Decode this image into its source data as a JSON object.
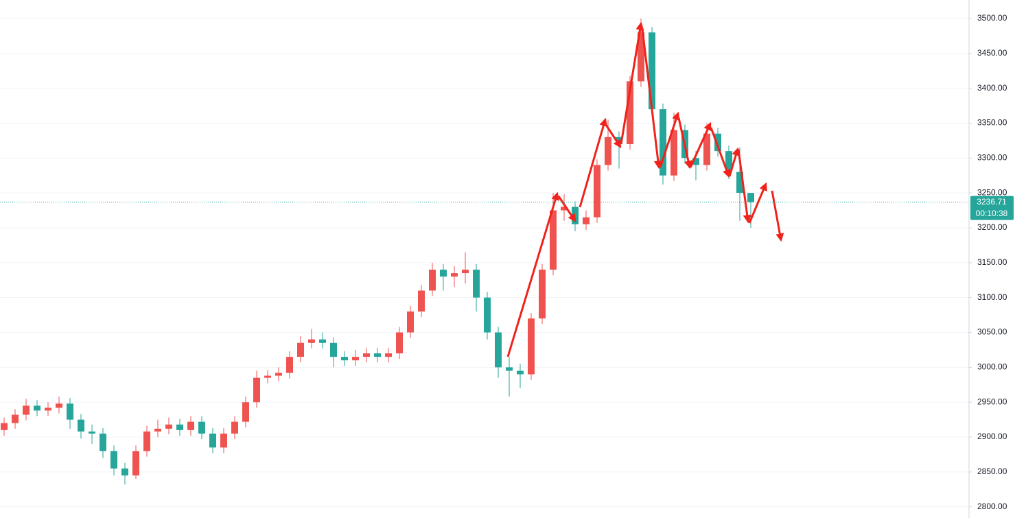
{
  "chart_data": {
    "type": "candlestick",
    "open": [
      2910,
      2920,
      2932,
      2945,
      2938,
      2942,
      2948,
      2925,
      2908,
      2905,
      2880,
      2855,
      2845,
      2880,
      2908,
      2912,
      2918,
      2910,
      2922,
      2905,
      2885,
      2905,
      2922,
      2950,
      2985,
      2988,
      2992,
      3015,
      3035,
      3040,
      3035,
      3015,
      3010,
      3015,
      3020,
      3015,
      3020,
      3050,
      3080,
      3110,
      3140,
      3130,
      3135,
      3140,
      3100,
      3050,
      3000,
      2995,
      2990,
      3070,
      3140,
      3225,
      3230,
      3205,
      3215,
      3290,
      3330,
      3320,
      3410,
      3480,
      3370,
      3275,
      3340,
      3300,
      3290,
      3335,
      3310,
      3280,
      3250
    ],
    "high": [
      2928,
      2940,
      2955,
      2953,
      2950,
      2958,
      2956,
      2933,
      2918,
      2913,
      2888,
      2863,
      2888,
      2916,
      2925,
      2928,
      2926,
      2930,
      2930,
      2913,
      2913,
      2930,
      2958,
      2995,
      2996,
      3000,
      3023,
      3045,
      3055,
      3050,
      3043,
      3023,
      3025,
      3028,
      3028,
      3028,
      3058,
      3088,
      3118,
      3150,
      3148,
      3145,
      3165,
      3148,
      3108,
      3058,
      3015,
      3005,
      3078,
      3148,
      3250,
      3248,
      3238,
      3225,
      3298,
      3355,
      3338,
      3418,
      3500,
      3488,
      3378,
      3365,
      3348,
      3310,
      3350,
      3343,
      3318,
      3315,
      3245
    ],
    "low": [
      2902,
      2912,
      2924,
      2930,
      2930,
      2934,
      2912,
      2898,
      2890,
      2870,
      2845,
      2832,
      2840,
      2872,
      2900,
      2904,
      2902,
      2902,
      2897,
      2877,
      2877,
      2897,
      2914,
      2942,
      2977,
      2980,
      2984,
      3007,
      3027,
      3027,
      3000,
      3002,
      3002,
      3007,
      3007,
      3007,
      3012,
      3042,
      3072,
      3102,
      3110,
      3115,
      3120,
      3080,
      3040,
      2985,
      2958,
      2970,
      2982,
      3062,
      3132,
      3210,
      3195,
      3197,
      3207,
      3282,
      3285,
      3312,
      3402,
      3362,
      3262,
      3267,
      3292,
      3268,
      3282,
      3302,
      3270,
      3210,
      3200
    ],
    "close": [
      2920,
      2932,
      2945,
      2938,
      2942,
      2948,
      2925,
      2908,
      2905,
      2880,
      2855,
      2845,
      2880,
      2908,
      2912,
      2918,
      2910,
      2922,
      2905,
      2885,
      2905,
      2922,
      2950,
      2985,
      2988,
      2992,
      3015,
      3035,
      3040,
      3035,
      3015,
      3010,
      3015,
      3020,
      3015,
      3020,
      3050,
      3080,
      3110,
      3140,
      3130,
      3135,
      3140,
      3100,
      3050,
      3000,
      2995,
      2990,
      3070,
      3140,
      3225,
      3230,
      3205,
      3215,
      3290,
      3330,
      3320,
      3410,
      3480,
      3370,
      3275,
      3340,
      3300,
      3290,
      3335,
      3310,
      3280,
      3250,
      3236.71
    ],
    "up_color": "#ef5350",
    "down_color": "#26a69a",
    "ylim": [
      2784,
      3526.5
    ],
    "yticks": [
      {
        "value": 2800,
        "label": "2800.00"
      },
      {
        "value": 2850,
        "label": "2850.00"
      },
      {
        "value": 2900,
        "label": "2900.00"
      },
      {
        "value": 2950,
        "label": "2950.00"
      },
      {
        "value": 3000,
        "label": "3000.00"
      },
      {
        "value": 3050,
        "label": "3050.00"
      },
      {
        "value": 3100,
        "label": "3100.00"
      },
      {
        "value": 3150,
        "label": "3150.00"
      },
      {
        "value": 3200,
        "label": "3200.00"
      },
      {
        "value": 3250,
        "label": "3250.00"
      },
      {
        "value": 3300,
        "label": "3300.00"
      },
      {
        "value": 3350,
        "label": "3350.00"
      },
      {
        "value": 3400,
        "label": "3400.00"
      },
      {
        "value": 3450,
        "label": "3450.00"
      },
      {
        "value": 3500,
        "label": "3500.00"
      }
    ],
    "grid": true,
    "last_price": 3236.71,
    "countdown": "00:10:38"
  }
}
